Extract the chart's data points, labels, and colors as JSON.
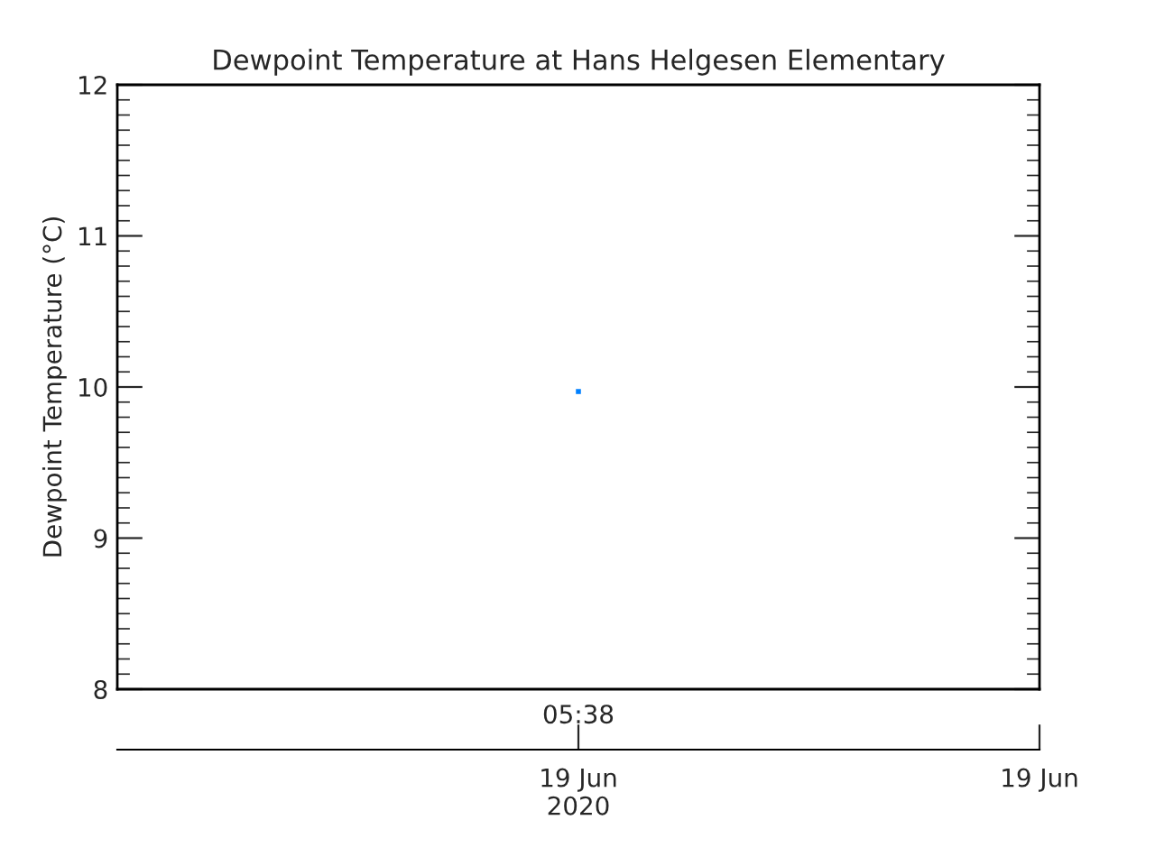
{
  "chart_data": {
    "type": "scatter",
    "title": "Dewpoint Temperature at Hans Helgesen Elementary",
    "ylabel": "Dewpoint Temperature (°C)",
    "categories": [
      "05:38"
    ],
    "series": [
      {
        "color": "#0080ff",
        "values": [
          9.97
        ]
      }
    ],
    "marker": "square",
    "annotations": [
      "19 Jun\n2020",
      "19 Jun"
    ],
    "ylim": [
      8,
      12
    ],
    "yticks": [
      8,
      9,
      10,
      11,
      12
    ],
    "grid": false,
    "legend": false
  }
}
